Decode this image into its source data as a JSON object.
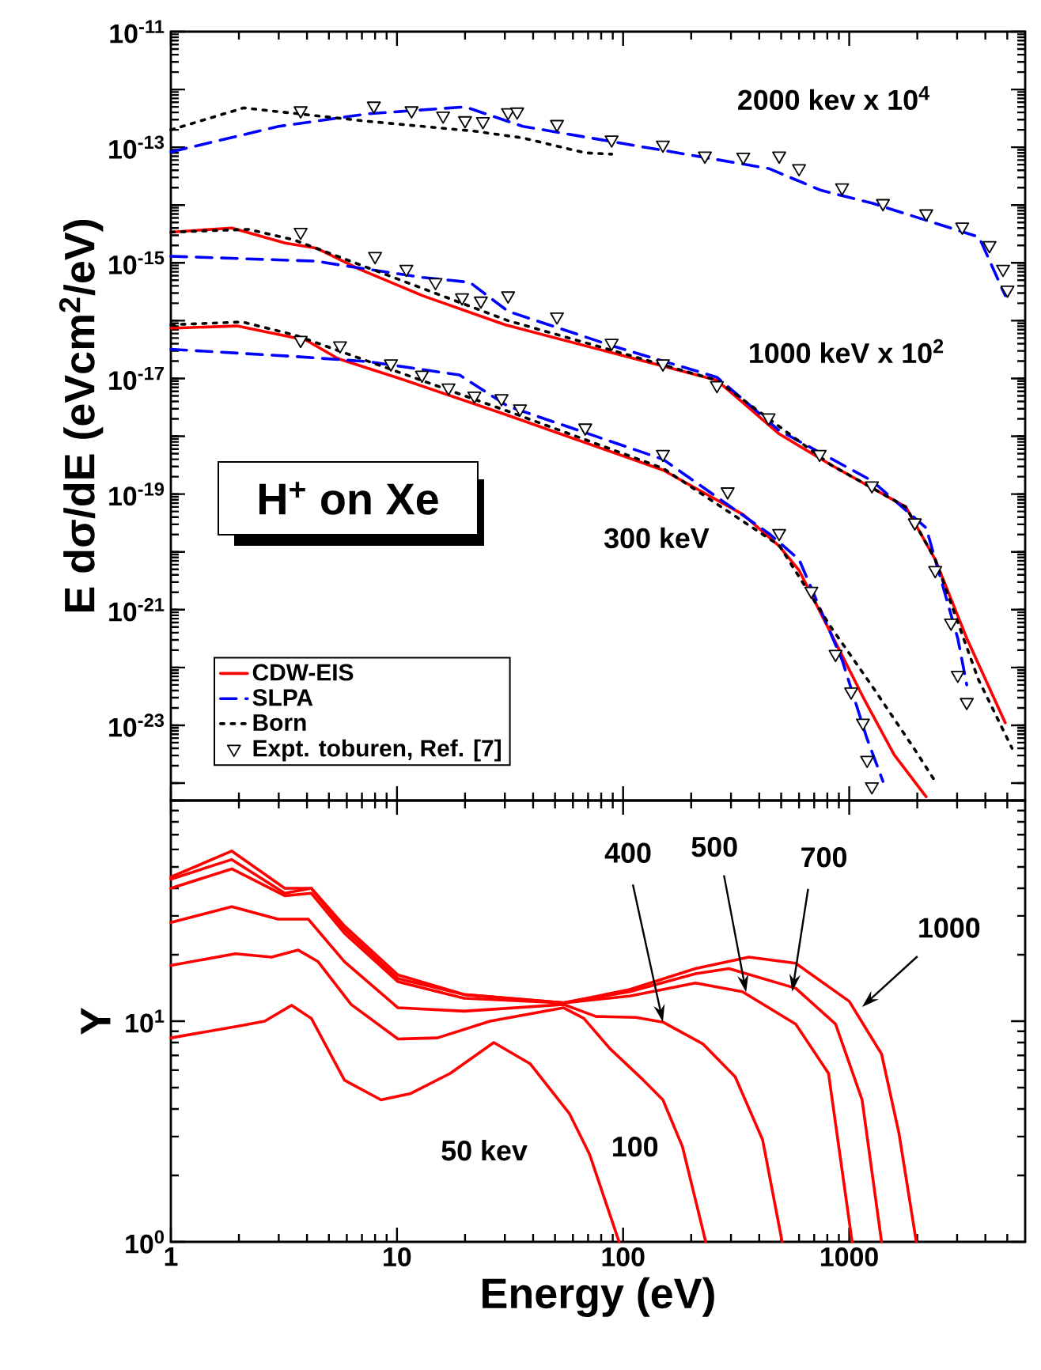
{
  "chart_data": [
    {
      "type": "line",
      "ylabel": "E dσ/dE (eVcm$^{2}$/eV)",
      "log": "xy",
      "tick_labels": "y",
      "legend": "bottom left",
      "xlim": [
        1,
        6000
      ],
      "xticks": [
        1,
        10,
        100,
        1000
      ],
      "ylim": [
        5e-25,
        1e-11
      ],
      "yticks": [
        {
          "value": 1e-24,
          "label": null
        },
        {
          "value": 1e-23,
          "label": "10$^{-23}$"
        },
        {
          "value": 1e-22,
          "label": null
        },
        {
          "value": 1e-21,
          "label": "10$^{-21}$"
        },
        {
          "value": 1e-20,
          "label": null
        },
        {
          "value": 1e-19,
          "label": "10$^{-19}$"
        },
        {
          "value": 1e-18,
          "label": null
        },
        {
          "value": 1e-17,
          "label": "10$^{-17}$"
        },
        {
          "value": 1e-16,
          "label": null
        },
        {
          "value": 1e-15,
          "label": "10$^{-15}$"
        },
        {
          "value": 1e-14,
          "label": null
        },
        {
          "value": 1e-13,
          "label": "10$^{-13}$"
        },
        {
          "value": 1e-12,
          "label": null
        },
        {
          "value": 1e-11,
          "label": "10$^{-11}$"
        }
      ],
      "annotations": [
        "2000 kev x 10$^{4}$",
        "1000 keV x 10$^{2}$",
        "300 keV",
        "H$^{+}$ on Xe"
      ],
      "series": [
        {
          "name": "CDW-EIS",
          "color": "#ff0000",
          "line_style": "solid",
          "x": [
            1,
            1.86,
            3.2,
            4.4,
            6.8,
            13,
            30,
            260,
            490,
            830,
            1780,
            2400,
            3310,
            4900
          ],
          "values": [
            3.4e-15,
            4e-15,
            2.2e-15,
            1.8e-15,
            7.8e-16,
            2.7e-16,
            8.5e-17,
            9.3e-18,
            1.1e-18,
            3.2e-19,
            6e-20,
            7.4e-21,
            3.2e-22,
            1.1e-23
          ]
        },
        {
          "name": "SLPA",
          "color": "#0000ff",
          "line_style": "dashed",
          "x": [
            1,
            3,
            7.5,
            20,
            36,
            440,
            750,
            1270,
            3750,
            4900
          ],
          "values": [
            8.3e-14,
            2.3e-13,
            3.8e-13,
            5e-13,
            2.3e-13,
            4.3e-14,
            1.8e-14,
            1.07e-14,
            2.8e-15,
            2.7e-16
          ]
        },
        {
          "name": "Born",
          "color": "#000000",
          "line_style": "dotted",
          "x": [
            1,
            2.1,
            7.5,
            22,
            36,
            68,
            89
          ],
          "values": [
            2e-13,
            4.8e-13,
            2.8e-13,
            1.9e-13,
            1.45e-13,
            8e-14,
            7.6e-14
          ]
        },
        {
          "name": "Expt. toburen, Ref. [7]",
          "type": "scatter",
          "marker": "triangle",
          "color": "#000000",
          "x": [
            3.75,
            7.9,
            11.6,
            16,
            20,
            24,
            31,
            34,
            51,
            89,
            150,
            230,
            340,
            490,
            600,
            930,
            1410,
            2190,
            3160,
            4170,
            4790,
            5010
          ],
          "values": [
            4.3e-13,
            5.2e-13,
            4.3e-13,
            3.5e-13,
            2.9e-13,
            2.8e-13,
            4e-13,
            4.1e-13,
            2.5e-13,
            1.35e-13,
            1.1e-13,
            7.1e-14,
            6.8e-14,
            7.1e-14,
            4.3e-14,
            2e-14,
            1.07e-14,
            7.1e-15,
            4.2e-15,
            2e-15,
            7.8e-16,
            3.4e-16
          ]
        },
        {
          "color": "#0000ff",
          "line_style": "dashed",
          "x": [
            1,
            4.4,
            6.1,
            13,
            21,
            31,
            89,
            260,
            490,
            1260,
            2190,
            3020,
            3310
          ],
          "values": [
            1.3e-15,
            1.07e-15,
            8.7e-16,
            5.6e-16,
            4.6e-16,
            1.45e-16,
            3.7e-17,
            1.05e-17,
            1.26e-18,
            1.7e-19,
            2.6e-20,
            3.2e-22,
            5e-23
          ]
        },
        {
          "color": "#000000",
          "line_style": "dotted",
          "x": [
            1,
            2.2,
            3.5,
            31,
            260,
            830,
            1780,
            2400,
            3720,
            5250
          ],
          "values": [
            3.4e-15,
            3.8e-15,
            2.5e-15,
            1e-16,
            9.3e-18,
            3.2e-19,
            6e-20,
            7.4e-21,
            6.3e-23,
            4e-24
          ]
        },
        {
          "type": "scatter",
          "marker": "triangle",
          "color": "#000000",
          "x": [
            3.75,
            8,
            11,
            14.8,
            19.4,
            23.5,
            31,
            51,
            89,
            150,
            260,
            440,
            740,
            1260,
            1950,
            2400,
            2820,
            3020,
            3310
          ],
          "values": [
            3.4e-15,
            1.3e-15,
            7.8e-16,
            4.6e-16,
            2.5e-16,
            2.2e-16,
            2.7e-16,
            1.17e-16,
            4.1e-17,
            1.8e-17,
            7.6e-18,
            2.1e-18,
            4.9e-19,
            1.4e-19,
            3.2e-20,
            4.8e-21,
            5.9e-22,
            7.4e-23,
            2.5e-23
          ]
        },
        {
          "color": "#ff0000",
          "line_style": "solid",
          "x": [
            1,
            1.96,
            3.96,
            5.5,
            9.9,
            30,
            150,
            340,
            490,
            600,
            830,
            1150,
            1580,
            2190
          ],
          "values": [
            7.4e-17,
            8.1e-17,
            4.6e-17,
            2.2e-17,
            1.05e-17,
            2.4e-18,
            2.6e-19,
            4.4e-20,
            1.26e-20,
            4.8e-21,
            3.9e-22,
            3.1e-23,
            3.1e-24,
            5.8e-25
          ]
        },
        {
          "color": "#0000ff",
          "line_style": "dashed",
          "x": [
            1,
            3.55,
            7.5,
            18.9,
            31,
            150,
            440,
            600,
            930,
            1200,
            1410
          ],
          "values": [
            3.2e-17,
            2.4e-17,
            1.95e-17,
            1.15e-17,
            3.3e-18,
            4e-19,
            2.1e-20,
            7.4e-21,
            1.35e-22,
            5.8e-24,
            1.07e-24
          ]
        },
        {
          "color": "#000000",
          "line_style": "dotted",
          "x": [
            1,
            2.07,
            3.55,
            31,
            150,
            490,
            830,
            1260,
            1950,
            2400
          ],
          "values": [
            8.5e-17,
            9.5e-17,
            5.6e-17,
            2.7e-18,
            2.8e-19,
            1.3e-20,
            5e-22,
            4.8e-23,
            3.8e-24,
            1.07e-24
          ]
        },
        {
          "type": "scatter",
          "marker": "triangle",
          "color": "#000000",
          "x": [
            3.75,
            5.6,
            9.4,
            12.9,
            16.9,
            22,
            29,
            35,
            68,
            150,
            290,
            490,
            680,
            870,
            1020,
            1150,
            1200,
            1260
          ],
          "values": [
            4.6e-17,
            3.7e-17,
            1.8e-17,
            1.15e-17,
            6.9e-18,
            5e-18,
            4.5e-18,
            3e-18,
            1.4e-18,
            4.9e-19,
            1.1e-19,
            2.1e-20,
            2.1e-21,
            1.7e-22,
            3.8e-23,
            1.1e-23,
            2.5e-24,
            8.7e-25
          ]
        }
      ]
    },
    {
      "type": "line",
      "xlabel": "Energy (eV)",
      "ylabel": "Y",
      "log": "xy",
      "line_style": "solid",
      "xlim": [
        1,
        6000
      ],
      "xticks": [
        1,
        10,
        100,
        1000
      ],
      "ylim": [
        1,
        100
      ],
      "yticks": [
        {
          "value": 1,
          "label": "10$^{0}$"
        },
        {
          "value": 10,
          "label": "10$^{1}$"
        },
        {
          "value": 100,
          "label": null
        }
      ],
      "annotations": [
        {
          "text": "400",
          "x": 150,
          "y": 9.9
        },
        {
          "text": "500",
          "x": 350,
          "y": 13.5
        },
        {
          "text": "700",
          "x": 560,
          "y": 13.6
        },
        {
          "text": "1000",
          "x": 1140,
          "y": 11.6
        },
        {
          "text": "50 kev",
          "x": 58,
          "y": 3.8
        },
        {
          "text": "100",
          "x": 183,
          "y": 2.7
        }
      ],
      "series": [
        {
          "color": "#ff0000",
          "x": [
            1,
            1.99,
            2.6,
            3.42,
            4.18,
            5.86,
            8.5,
            11.5,
            17.2,
            26.8,
            38.9,
            58,
            71,
            96
          ],
          "values": [
            8.4,
            9.5,
            10,
            11.8,
            10.3,
            5.4,
            4.4,
            4.7,
            5.8,
            8,
            6.4,
            3.8,
            2.5,
            1
          ]
        },
        {
          "color": "#ff0000",
          "x": [
            1,
            1.93,
            2.79,
            3.66,
            4.48,
            6.27,
            10.1,
            15.1,
            25.8,
            54.6,
            67,
            87.6,
            123,
            150,
            183,
            232
          ],
          "values": [
            17.9,
            20.2,
            19.5,
            21,
            18.6,
            11.9,
            8.3,
            8.4,
            10,
            11.5,
            10.3,
            7.5,
            5.4,
            4.4,
            2.7,
            1
          ]
        },
        {
          "color": "#ff0000",
          "x": [
            1,
            1.86,
            2.98,
            4.05,
            5.86,
            10.1,
            19.8,
            54.6,
            76,
            114,
            150,
            225,
            313,
            414,
            505
          ],
          "values": [
            28,
            33,
            29,
            29,
            18.6,
            11.5,
            11.1,
            11.9,
            10.5,
            10.4,
            9.9,
            7.9,
            5.6,
            2.9,
            1
          ]
        },
        {
          "color": "#ff0000",
          "x": [
            1,
            1.86,
            3.19,
            4.18,
            5.86,
            10.1,
            19.8,
            54.6,
            107,
            209,
            337,
            580,
            810,
            1030
          ],
          "values": [
            40,
            49,
            37,
            38,
            25,
            15.1,
            12.7,
            12.1,
            13,
            14.9,
            13.6,
            9.7,
            5.8,
            1
          ]
        },
        {
          "color": "#ff0000",
          "x": [
            1,
            1.86,
            3.19,
            4.18,
            5.86,
            10.1,
            19.8,
            54.6,
            107,
            209,
            294,
            580,
            870,
            1140,
            1390
          ],
          "values": [
            44,
            54,
            38,
            40,
            26,
            15.6,
            13.2,
            12.1,
            13.6,
            16.4,
            17.3,
            14.1,
            9.7,
            4.4,
            1
          ]
        },
        {
          "color": "#ff0000",
          "x": [
            1,
            1.86,
            3.19,
            4.18,
            5.86,
            10.1,
            19.8,
            54.6,
            107,
            209,
            360,
            580,
            1000,
            1390,
            1660,
            1980
          ],
          "values": [
            45,
            59,
            40,
            40,
            27,
            16.2,
            13.2,
            12.1,
            13.9,
            17.3,
            19.5,
            18.3,
            12.3,
            7.1,
            3.1,
            1
          ]
        }
      ]
    }
  ]
}
